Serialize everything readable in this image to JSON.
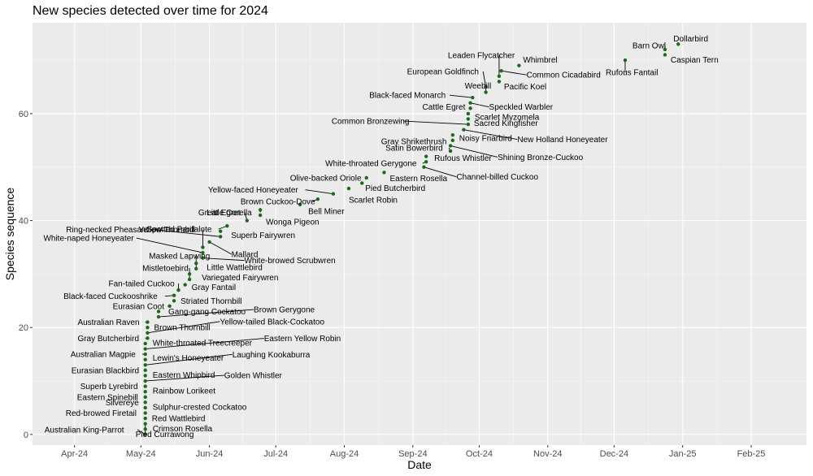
{
  "chart_data": {
    "type": "scatter",
    "title": "New species detected over time for 2024",
    "xlabel": "Date",
    "ylabel": "Species sequence",
    "xlim": [
      "2024-03-13",
      "2025-02-26"
    ],
    "ylim": [
      -2,
      77
    ],
    "x_ticks": [
      {
        "value": "2024-04-01",
        "label": "Apr-24"
      },
      {
        "value": "2024-05-01",
        "label": "May-24"
      },
      {
        "value": "2024-06-01",
        "label": "Jun-24"
      },
      {
        "value": "2024-07-01",
        "label": "Jul-24"
      },
      {
        "value": "2024-08-01",
        "label": "Aug-24"
      },
      {
        "value": "2024-09-01",
        "label": "Sep-24"
      },
      {
        "value": "2024-10-01",
        "label": "Oct-24"
      },
      {
        "value": "2024-11-01",
        "label": "Nov-24"
      },
      {
        "value": "2024-12-01",
        "label": "Dec-24"
      },
      {
        "value": "2025-01-01",
        "label": "Jan-25"
      },
      {
        "value": "2025-02-01",
        "label": "Feb-25"
      }
    ],
    "y_ticks": [
      0,
      20,
      40,
      60
    ],
    "grid": true,
    "background": "#ebebeb",
    "point_color": "#1a6b1a",
    "points": [
      {
        "x": "2024-05-03",
        "y": 0,
        "label": "Australian King-Parrot"
      },
      {
        "x": "2024-05-03",
        "y": 1,
        "label": "Crimson Rosella"
      },
      {
        "x": "2024-05-03",
        "y": 2,
        "label": "Pied Currawong"
      },
      {
        "x": "2024-05-03",
        "y": 3,
        "label": "Red Wattlebird"
      },
      {
        "x": "2024-05-03",
        "y": 4,
        "label": "Red-browed Firetail"
      },
      {
        "x": "2024-05-03",
        "y": 5,
        "label": "Sulphur-crested Cockatoo"
      },
      {
        "x": "2024-05-03",
        "y": 6,
        "label": "Silvereye"
      },
      {
        "x": "2024-05-03",
        "y": 7,
        "label": "Eastern Spinebill"
      },
      {
        "x": "2024-05-03",
        "y": 8,
        "label": "Rainbow Lorikeet"
      },
      {
        "x": "2024-05-03",
        "y": 9,
        "label": "Superb Lyrebird"
      },
      {
        "x": "2024-05-03",
        "y": 10,
        "label": "Golden Whistler"
      },
      {
        "x": "2024-05-03",
        "y": 11,
        "label": "Eastern Whipbird"
      },
      {
        "x": "2024-05-03",
        "y": 12,
        "label": "Eurasian Blackbird"
      },
      {
        "x": "2024-05-03",
        "y": 13,
        "label": "Laughing Kookaburra"
      },
      {
        "x": "2024-05-03",
        "y": 14,
        "label": "Lewin's Honeyeater"
      },
      {
        "x": "2024-05-03",
        "y": 15,
        "label": "Australian Magpie"
      },
      {
        "x": "2024-05-03",
        "y": 16,
        "label": "Eastern Yellow Robin"
      },
      {
        "x": "2024-05-03",
        "y": 17,
        "label": "White-throated Treecreeper"
      },
      {
        "x": "2024-05-04",
        "y": 18,
        "label": "Gray Butcherbird"
      },
      {
        "x": "2024-05-04",
        "y": 19,
        "label": "Yellow-tailed Black-Cockatoo"
      },
      {
        "x": "2024-05-04",
        "y": 20,
        "label": "Brown Thornbill"
      },
      {
        "x": "2024-05-04",
        "y": 21,
        "label": "Australian Raven"
      },
      {
        "x": "2024-05-09",
        "y": 22,
        "label": "Brown Gerygone"
      },
      {
        "x": "2024-05-09",
        "y": 23,
        "label": "Gang-gang Cockatoo"
      },
      {
        "x": "2024-05-14",
        "y": 24,
        "label": "Eurasian Coot"
      },
      {
        "x": "2024-05-16",
        "y": 25,
        "label": "Striated Thornbill"
      },
      {
        "x": "2024-05-16",
        "y": 26,
        "label": "Black-faced Cuckooshrike"
      },
      {
        "x": "2024-05-18",
        "y": 27,
        "label": "Fan-tailed Cuckoo"
      },
      {
        "x": "2024-05-21",
        "y": 28,
        "label": "Gray Fantail"
      },
      {
        "x": "2024-05-23",
        "y": 29,
        "label": "Mistletoebird"
      },
      {
        "x": "2024-05-23",
        "y": 30,
        "label": "Variegated Fairywren"
      },
      {
        "x": "2024-05-26",
        "y": 31,
        "label": "Masked Lapwing"
      },
      {
        "x": "2024-05-26",
        "y": 32,
        "label": "Little Wattlebird"
      },
      {
        "x": "2024-05-29",
        "y": 33,
        "label": "White-browed Scrubwren"
      },
      {
        "x": "2024-05-29",
        "y": 34,
        "label": "White-naped Honeyeater"
      },
      {
        "x": "2024-05-29",
        "y": 35,
        "label": "Yellow Thornbill"
      },
      {
        "x": "2024-06-01",
        "y": 36,
        "label": "Mallard"
      },
      {
        "x": "2024-06-06",
        "y": 37,
        "label": "Ring-necked Pheasant"
      },
      {
        "x": "2024-06-06",
        "y": 38,
        "label": "Superb Fairywren"
      },
      {
        "x": "2024-06-09",
        "y": 39,
        "label": "Spotted Pardalote"
      },
      {
        "x": "2024-06-18",
        "y": 40,
        "label": "Great Egret"
      },
      {
        "x": "2024-06-24",
        "y": 41,
        "label": "Wonga Pigeon"
      },
      {
        "x": "2024-06-24",
        "y": 42,
        "label": "Little Corella"
      },
      {
        "x": "2024-07-12",
        "y": 43,
        "label": "Bell Miner"
      },
      {
        "x": "2024-07-20",
        "y": 44,
        "label": "Brown Cuckoo-Dove"
      },
      {
        "x": "2024-07-27",
        "y": 45,
        "label": "Yellow-faced Honeyeater"
      },
      {
        "x": "2024-08-03",
        "y": 46,
        "label": "Scarlet Robin"
      },
      {
        "x": "2024-08-09",
        "y": 47,
        "label": "Pied Butcherbird"
      },
      {
        "x": "2024-08-11",
        "y": 48,
        "label": "Olive-backed Oriole"
      },
      {
        "x": "2024-08-19",
        "y": 49,
        "label": "Eastern Rosella"
      },
      {
        "x": "2024-09-06",
        "y": 50,
        "label": "Channel-billed Cuckoo"
      },
      {
        "x": "2024-09-07",
        "y": 51,
        "label": "White-throated Gerygone"
      },
      {
        "x": "2024-09-07",
        "y": 52,
        "label": "Rufous Whistler"
      },
      {
        "x": "2024-09-18",
        "y": 53,
        "label": "Satin Bowerbird"
      },
      {
        "x": "2024-09-18",
        "y": 54,
        "label": "Shining Bronze-Cuckoo"
      },
      {
        "x": "2024-09-19",
        "y": 55,
        "label": "Gray Shrikethrush"
      },
      {
        "x": "2024-09-19",
        "y": 56,
        "label": "Noisy Friarbird"
      },
      {
        "x": "2024-09-24",
        "y": 57,
        "label": "New Holland Honeyeater"
      },
      {
        "x": "2024-09-26",
        "y": 58,
        "label": "Common Bronzewing"
      },
      {
        "x": "2024-09-26",
        "y": 59,
        "label": "Sacred Kingfisher"
      },
      {
        "x": "2024-09-26",
        "y": 60,
        "label": "Scarlet Myzomela"
      },
      {
        "x": "2024-09-27",
        "y": 61,
        "label": "Cattle Egret"
      },
      {
        "x": "2024-09-27",
        "y": 62,
        "label": "Speckled Warbler"
      },
      {
        "x": "2024-09-28",
        "y": 63,
        "label": "Black-faced Monarch"
      },
      {
        "x": "2024-10-04",
        "y": 64,
        "label": "Weebill"
      },
      {
        "x": "2024-10-04",
        "y": 65,
        "label": "European Goldfinch"
      },
      {
        "x": "2024-10-10",
        "y": 66,
        "label": "Pacific Koel"
      },
      {
        "x": "2024-10-10",
        "y": 67,
        "label": "Leaden Flycatcher"
      },
      {
        "x": "2024-10-11",
        "y": 68,
        "label": "Common Cicadabird"
      },
      {
        "x": "2024-10-19",
        "y": 69,
        "label": "Whimbrel"
      },
      {
        "x": "2024-12-06",
        "y": 70,
        "label": "Rufous Fantail"
      },
      {
        "x": "2024-12-24",
        "y": 71,
        "label": "Caspian Tern"
      },
      {
        "x": "2024-12-24",
        "y": 72,
        "label": "Barn Owl"
      },
      {
        "x": "2024-12-30",
        "y": 73,
        "label": "Dollarbird"
      }
    ]
  }
}
